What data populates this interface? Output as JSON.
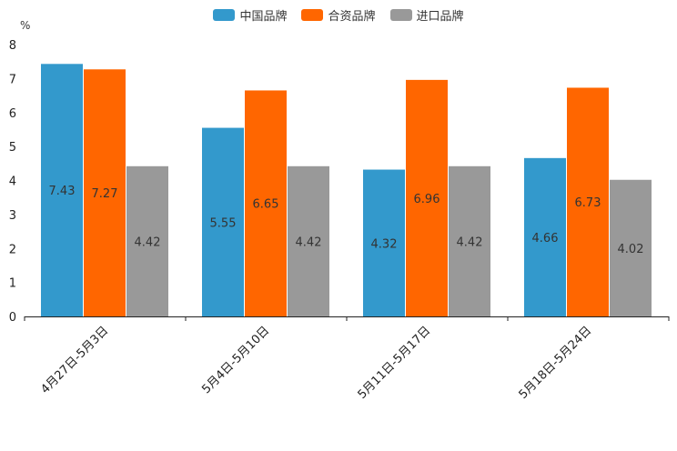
{
  "chart_data": {
    "type": "bar",
    "unit_label": "%",
    "categories": [
      "4月27日-5月3日",
      "5月4日-5月10日",
      "5月11日-5月17日",
      "5月18日-5月24日"
    ],
    "series": [
      {
        "name": "中国品牌",
        "color": "#3399cc",
        "values": [
          7.43,
          5.55,
          4.32,
          4.66
        ],
        "labels": [
          "7.43",
          "5.55",
          "4.32",
          "4.66"
        ]
      },
      {
        "name": "合资品牌",
        "color": "#ff6600",
        "values": [
          7.27,
          6.65,
          6.96,
          6.73
        ],
        "labels": [
          "7.27",
          "6.65",
          "6.96",
          "6.73"
        ]
      },
      {
        "name": "进口品牌",
        "color": "#999999",
        "values": [
          4.42,
          4.42,
          4.42,
          4.02
        ],
        "labels": [
          "4.42",
          "4.42",
          "4.42",
          "4.02"
        ]
      }
    ],
    "y_ticks": [
      "0",
      "1",
      "2",
      "3",
      "4",
      "5",
      "6",
      "7",
      "8"
    ],
    "ylim": [
      0,
      8
    ],
    "grid": false,
    "legend_position": "top-center"
  }
}
